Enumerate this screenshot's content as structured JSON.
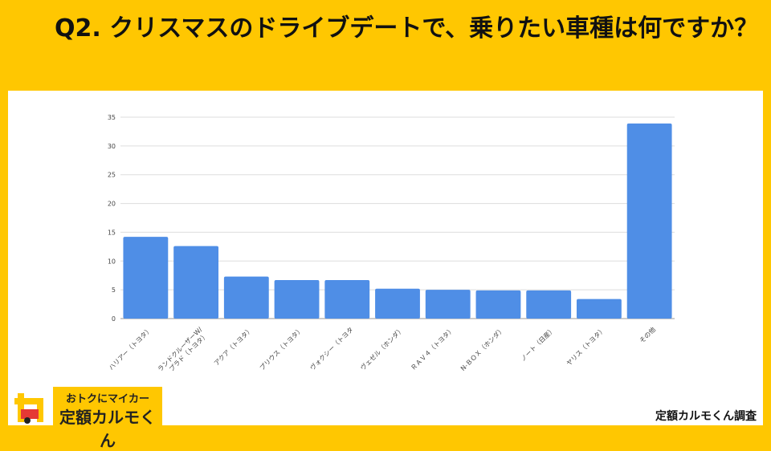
{
  "title": "Q2. クリスマスのドライブデートで、乗りたい車種は何ですか？",
  "logo": {
    "line1": "おトクにマイカー",
    "line2": "定額カルモくん"
  },
  "source": "定額カルモくん調査",
  "colors": {
    "background": "#FFC701",
    "bar": "#4F8EE6"
  },
  "chart_data": {
    "type": "bar",
    "title": "",
    "xlabel": "",
    "ylabel": "",
    "ylim": [
      0,
      35
    ],
    "yticks": [
      0,
      5,
      10,
      15,
      20,
      25,
      30,
      35
    ],
    "grid": true,
    "categories": [
      "ハリアー（トヨタ）",
      "ランドクルーザーW/プラド（トヨタ）",
      "アクア（トヨタ）",
      "プリウス（トヨタ）",
      "ヴォクシー（トヨタ",
      "ヴェゼル（ホンダ）",
      "ＲＡＶ４（トヨタ）",
      "N-ＢＯＸ（ホンダ）",
      "ノート（日産）",
      "ヤリス（トヨタ）",
      "その他"
    ],
    "values": [
      14.2,
      12.6,
      7.3,
      6.7,
      6.7,
      5.2,
      5.0,
      4.9,
      4.9,
      3.4,
      33.9
    ]
  }
}
